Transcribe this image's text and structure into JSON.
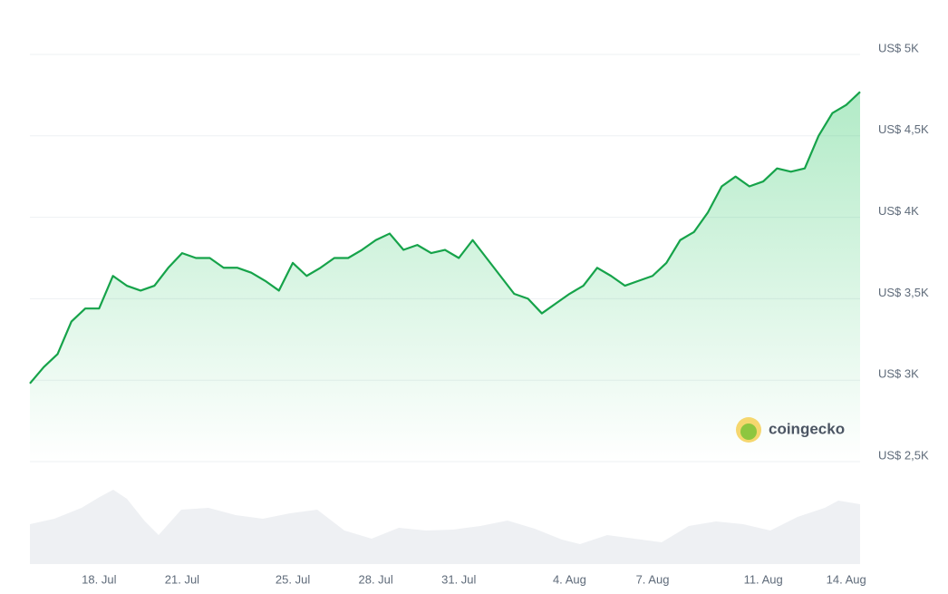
{
  "chart_data": {
    "type": "line",
    "watermark": "coingecko",
    "categories": [
      null,
      null,
      null,
      null,
      null,
      "18. Jul",
      null,
      null,
      null,
      null,
      null,
      "21. Jul",
      null,
      null,
      null,
      null,
      null,
      null,
      null,
      "25. Jul",
      null,
      null,
      null,
      null,
      null,
      "28. Jul",
      null,
      null,
      null,
      null,
      null,
      "31. Jul",
      null,
      null,
      null,
      null,
      null,
      null,
      null,
      "4. Aug",
      null,
      null,
      null,
      null,
      null,
      "7. Aug",
      null,
      null,
      null,
      null,
      null,
      null,
      null,
      "11. Aug",
      null,
      null,
      null,
      null,
      null,
      "14. Aug",
      null
    ],
    "series": [
      {
        "color": "#16a34a",
        "values": [
          2980,
          3080,
          3160,
          3360,
          3440,
          3440,
          3640,
          3580,
          3550,
          3580,
          3690,
          3780,
          3750,
          3750,
          3690,
          3690,
          3660,
          3610,
          3550,
          3720,
          3640,
          3690,
          3750,
          3750,
          3800,
          3860,
          3900,
          3800,
          3830,
          3780,
          3800,
          3750,
          3860,
          3750,
          3640,
          3530,
          3500,
          3410,
          3470,
          3530,
          3580,
          3690,
          3640,
          3580,
          3610,
          3640,
          3720,
          3860,
          3910,
          4030,
          4190,
          4250,
          4190,
          4220,
          4300,
          4280,
          4300,
          4500,
          4640,
          4690,
          4770
        ]
      }
    ],
    "ylim": [
      2500,
      5000
    ],
    "yticks": [
      {
        "value": 2500,
        "label": "US$ 2,5K"
      },
      {
        "value": 3000,
        "label": "US$ 3K"
      },
      {
        "value": 3500,
        "label": "US$ 3,5K"
      },
      {
        "value": 4000,
        "label": "US$ 4K"
      },
      {
        "value": 4500,
        "label": "US$ 4,5K"
      },
      {
        "value": 5000,
        "label": "US$ 5K"
      }
    ],
    "grid": true
  }
}
